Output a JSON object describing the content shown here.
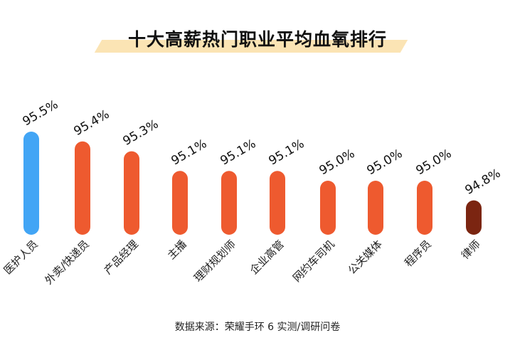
{
  "title": "十大高薪热门职业平均血氧排行",
  "source": "数据来源：荣耀手环 6 实测/调研问卷",
  "chart_data": {
    "type": "bar",
    "title": "十大高薪热门职业平均血氧排行",
    "categories": [
      "医护人员",
      "外卖/快递员",
      "产品经理",
      "主播",
      "理财规划师",
      "企业高管",
      "网约车司机",
      "公关媒体",
      "程序员",
      "律师"
    ],
    "values": [
      95.5,
      95.4,
      95.3,
      95.1,
      95.1,
      95.1,
      95.0,
      95.0,
      95.0,
      94.8
    ],
    "value_labels": [
      "95.5%",
      "95.4%",
      "95.3%",
      "95.1%",
      "95.1%",
      "95.1%",
      "95.0%",
      "95.0%",
      "95.0%",
      "94.8%"
    ],
    "unit": "%",
    "grid": false,
    "axes_visible": false,
    "colors": {
      "highest": "#42a5f5",
      "default": "#ee5a2f",
      "lowest": "#7b2511"
    }
  }
}
